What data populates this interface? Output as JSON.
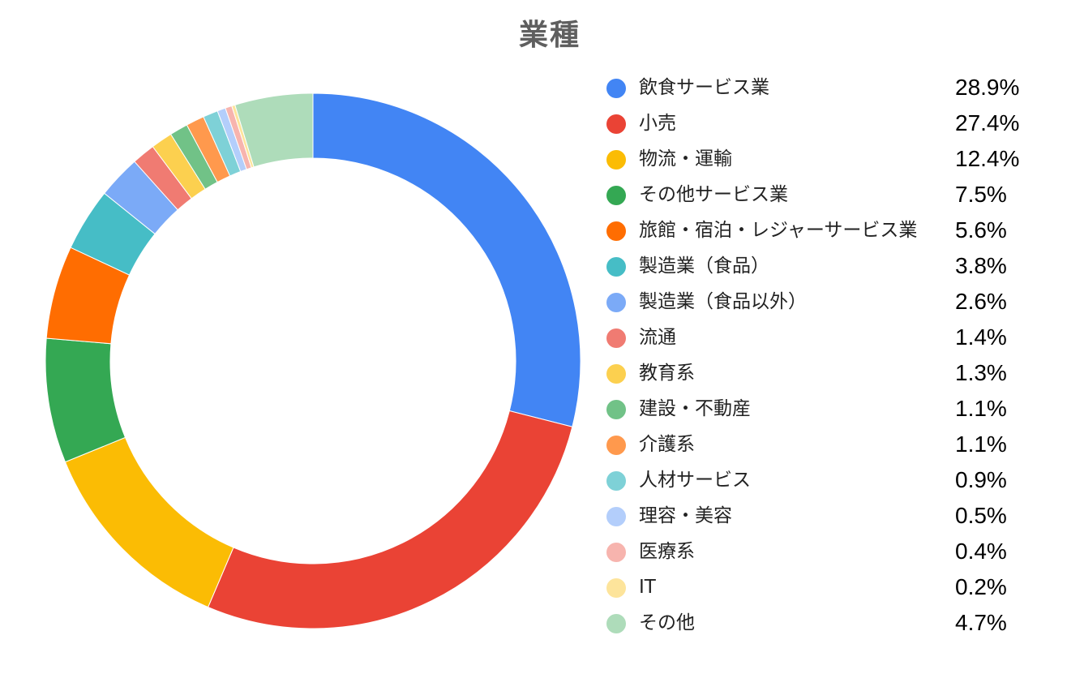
{
  "chart_data": {
    "type": "pie",
    "title": "業種",
    "legend_position": "right",
    "categories": [
      "飲食サービス業",
      "小売",
      "物流・運輸",
      "その他サービス業",
      "旅館・宿泊・レジャーサービス業",
      "製造業（食品）",
      "製造業（食品以外）",
      "流通",
      "教育系",
      "建設・不動産",
      "介護系",
      "人材サービス",
      "理容・美容",
      "医療系",
      "IT",
      "その他"
    ],
    "values": [
      28.9,
      27.4,
      12.4,
      7.5,
      5.6,
      3.8,
      2.6,
      1.4,
      1.3,
      1.1,
      1.1,
      0.9,
      0.5,
      0.4,
      0.2,
      4.7
    ],
    "labels": [
      "28.9%",
      "27.4%",
      "12.4%",
      "7.5%",
      "5.6%",
      "3.8%",
      "2.6%",
      "1.4%",
      "1.3%",
      "1.1%",
      "1.1%",
      "0.9%",
      "0.5%",
      "0.4%",
      "0.2%",
      "4.7%"
    ],
    "colors": [
      "#4285F4",
      "#EA4335",
      "#FBBC04",
      "#34A853",
      "#FF6D01",
      "#46BDC6",
      "#7BAAF7",
      "#F07B72",
      "#FCD04F",
      "#71C287",
      "#FF994D",
      "#7ED1D7",
      "#B3CEFB",
      "#F7B4AE",
      "#FDE49B",
      "#AEDCBA"
    ]
  }
}
